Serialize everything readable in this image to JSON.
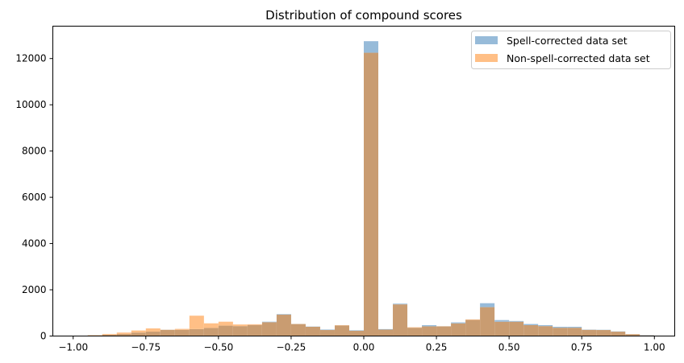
{
  "chart_data": {
    "type": "bar",
    "title": "Distribution of compound scores",
    "xlabel": "",
    "ylabel": "",
    "xlim": [
      -1.07,
      1.07
    ],
    "ylim": [
      0,
      13400
    ],
    "xticks": [
      -1.0,
      -0.75,
      -0.5,
      -0.25,
      0.0,
      0.25,
      0.5,
      0.75,
      1.0
    ],
    "xtick_labels": [
      "−1.00",
      "−0.75",
      "−0.50",
      "−0.25",
      "0.00",
      "0.25",
      "0.50",
      "0.75",
      "1.00"
    ],
    "yticks": [
      0,
      2000,
      4000,
      6000,
      8000,
      10000,
      12000
    ],
    "ytick_labels": [
      "0",
      "2000",
      "4000",
      "6000",
      "8000",
      "10000",
      "12000"
    ],
    "bins": {
      "start": -1.0,
      "end": 1.0,
      "count": 40
    },
    "legend_position": "top-right",
    "grid": false,
    "overlap_color": "#c99c71",
    "series": [
      {
        "name": "Spell-corrected data set",
        "color": "#97bbd9",
        "values": [
          0,
          30,
          60,
          90,
          150,
          190,
          270,
          270,
          300,
          350,
          450,
          430,
          480,
          620,
          950,
          520,
          410,
          280,
          460,
          250,
          12750,
          300,
          1400,
          360,
          470,
          420,
          590,
          700,
          1420,
          690,
          650,
          520,
          470,
          400,
          400,
          280,
          270,
          200,
          80,
          40
        ]
      },
      {
        "name": "Non-spell-corrected data set",
        "color": "#ffbf86",
        "values": [
          0,
          40,
          90,
          150,
          240,
          330,
          270,
          310,
          880,
          550,
          620,
          500,
          510,
          600,
          930,
          520,
          400,
          260,
          470,
          230,
          12250,
          280,
          1370,
          380,
          420,
          420,
          550,
          720,
          1250,
          620,
          620,
          470,
          430,
          360,
          360,
          270,
          260,
          190,
          80,
          30
        ]
      }
    ]
  }
}
